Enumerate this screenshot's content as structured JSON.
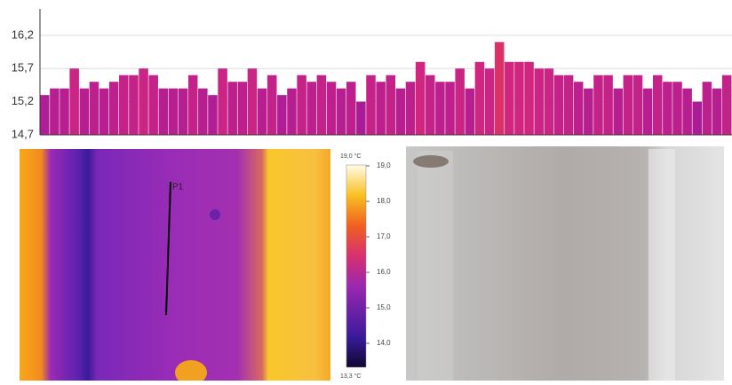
{
  "chart_data": {
    "type": "bar",
    "values": [
      15.3,
      15.4,
      15.4,
      15.7,
      15.4,
      15.5,
      15.4,
      15.5,
      15.6,
      15.6,
      15.7,
      15.6,
      15.4,
      15.4,
      15.4,
      15.6,
      15.4,
      15.3,
      15.7,
      15.5,
      15.5,
      15.7,
      15.4,
      15.6,
      15.3,
      15.4,
      15.6,
      15.5,
      15.6,
      15.5,
      15.4,
      15.5,
      15.2,
      15.6,
      15.5,
      15.6,
      15.4,
      15.5,
      15.8,
      15.6,
      15.5,
      15.5,
      15.7,
      15.4,
      15.8,
      15.7,
      16.1,
      15.8,
      15.8,
      15.8,
      15.7,
      15.7,
      15.6,
      15.6,
      15.5,
      15.4,
      15.6,
      15.6,
      15.4,
      15.6,
      15.6,
      15.4,
      15.6,
      15.5,
      15.5,
      15.4,
      15.2,
      15.5,
      15.4,
      15.6
    ],
    "categories": [
      null,
      null,
      null,
      null,
      null,
      null,
      null,
      null,
      null,
      null,
      null,
      null,
      null,
      null,
      null,
      null,
      null,
      null,
      null,
      null,
      null,
      null,
      null,
      null,
      null,
      null,
      null,
      null,
      null,
      null,
      null,
      null,
      null,
      null,
      null,
      null,
      null,
      null,
      null,
      null,
      null,
      null,
      null,
      null,
      null,
      null,
      null,
      null,
      null,
      null,
      null,
      null,
      null,
      null,
      null,
      null,
      null,
      null,
      null,
      null,
      null,
      null,
      null,
      null,
      null,
      null,
      null,
      null,
      null,
      null
    ],
    "color_scale": [
      "#a0189e",
      "#d8287c",
      "#f04a1c"
    ],
    "ylim": [
      14.7,
      16.6
    ],
    "yticks": [
      {
        "value": 14.7,
        "label": "14,7"
      },
      {
        "value": 15.2,
        "label": "15,2"
      },
      {
        "value": 15.7,
        "label": "15,7"
      },
      {
        "value": 16.2,
        "label": "16,2"
      }
    ],
    "grid": true
  },
  "thermal_image": {
    "marker_label": "P1",
    "scale_max": "19,0 °C",
    "scale_min": "13,3 °C",
    "scale_ticks": [
      "19,0",
      "18,0",
      "17,0",
      "16,0",
      "15,0",
      "14,0"
    ]
  }
}
